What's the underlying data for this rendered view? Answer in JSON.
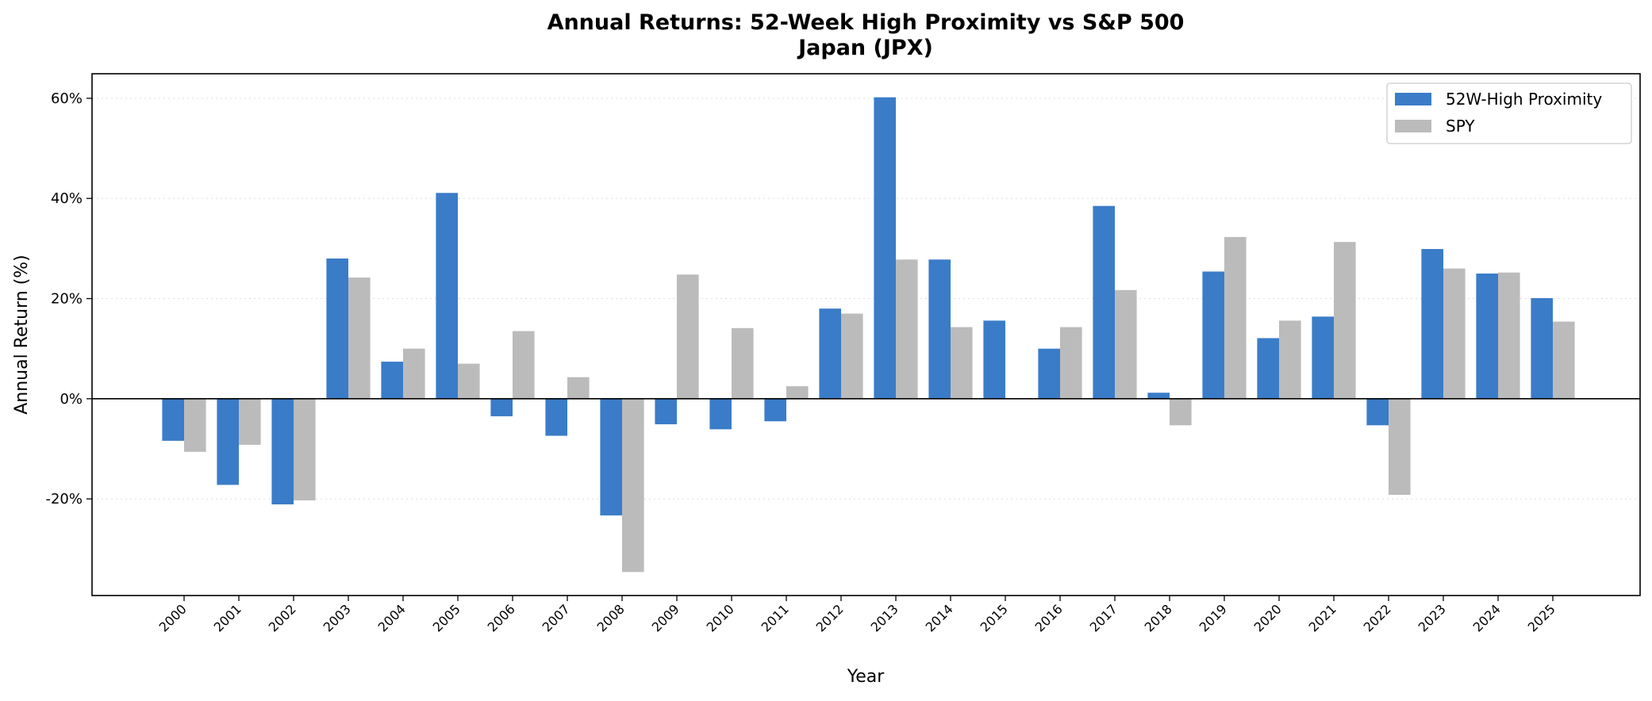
{
  "chart_data": {
    "type": "bar",
    "title": "Annual Returns: 52-Week High Proximity vs S&P 500",
    "subtitle": "Japan (JPX)",
    "xlabel": "Year",
    "ylabel": "Annual Return (%)",
    "ylim": [
      -39.3,
      64.9
    ],
    "yticks": [
      -20,
      0,
      20,
      40,
      60
    ],
    "ytick_labels": [
      "-20%",
      "0%",
      "20%",
      "40%",
      "60%"
    ],
    "grid": "y dotted",
    "legend": "top-right",
    "categories": [
      "2000",
      "2001",
      "2002",
      "2003",
      "2004",
      "2005",
      "2006",
      "2007",
      "2008",
      "2009",
      "2010",
      "2011",
      "2012",
      "2013",
      "2014",
      "2015",
      "2016",
      "2017",
      "2018",
      "2019",
      "2020",
      "2021",
      "2022",
      "2023",
      "2024",
      "2025"
    ],
    "series": [
      {
        "name": "52W-High Proximity",
        "color": "#3a7cc8",
        "values": [
          -8.4,
          -17.2,
          -21.1,
          28.0,
          7.4,
          41.1,
          -3.5,
          -7.4,
          -23.3,
          -5.1,
          -6.1,
          -4.5,
          18.0,
          60.2,
          27.8,
          15.6,
          10.0,
          38.5,
          1.2,
          25.4,
          12.1,
          16.4,
          -5.3,
          29.9,
          25.0,
          20.1
        ]
      },
      {
        "name": "SPY",
        "color": "#bbbbbb",
        "values": [
          -10.6,
          -9.2,
          -20.3,
          24.2,
          10.0,
          7.0,
          13.5,
          4.3,
          -34.6,
          24.8,
          14.1,
          2.5,
          17.0,
          27.8,
          14.3,
          0.0,
          14.3,
          21.7,
          -5.3,
          32.3,
          15.6,
          31.3,
          -19.2,
          26.0,
          25.2,
          15.4
        ]
      }
    ]
  }
}
